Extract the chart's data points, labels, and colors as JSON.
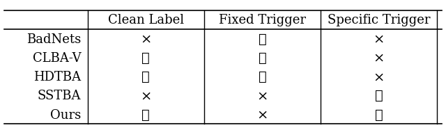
{
  "rows": [
    "BadNets",
    "CLBA-V",
    "HDTBA",
    "SSTBA",
    "Ours"
  ],
  "cols": [
    "Clean Label",
    "Fixed Trigger",
    "Specific Trigger"
  ],
  "cells": [
    [
      "×",
      "✓",
      "×"
    ],
    [
      "✓",
      "✓",
      "×"
    ],
    [
      "✓",
      "✓",
      "×"
    ],
    [
      "×",
      "×",
      "✓"
    ],
    [
      "✓",
      "×",
      "✓"
    ]
  ],
  "background_color": "#ffffff",
  "text_color": "#000000",
  "header_fontsize": 13,
  "row_fontsize": 13,
  "cell_fontsize": 14,
  "fig_width": 6.4,
  "fig_height": 2.01
}
